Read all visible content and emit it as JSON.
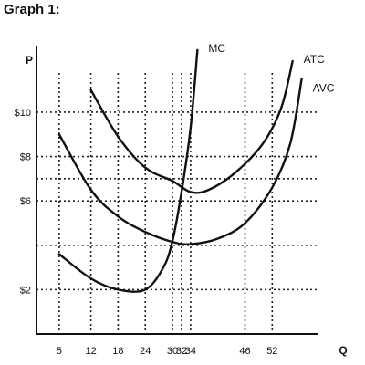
{
  "header": {
    "title": "Graph 1:"
  },
  "chart_data": {
    "type": "line",
    "ylabel": "P",
    "xlabel": "Q",
    "xlim": [
      0,
      62
    ],
    "ylim": [
      0,
      13
    ],
    "x_ticks": [
      5,
      12,
      18,
      24,
      30,
      32,
      34,
      46,
      52
    ],
    "y_ticks": [
      {
        "value": 2,
        "label": "$2"
      },
      {
        "value": 4,
        "label": ""
      },
      {
        "value": 6,
        "label": "$6"
      },
      {
        "value": 7,
        "label": ""
      },
      {
        "value": 8,
        "label": "$8"
      },
      {
        "value": 10,
        "label": "$10"
      }
    ],
    "grid": "dotted",
    "series": [
      {
        "name": "MC",
        "color": "#111111",
        "points": [
          [
            5,
            3.6
          ],
          [
            12,
            2.5
          ],
          [
            18,
            2.0
          ],
          [
            24,
            2.0
          ],
          [
            28,
            3.0
          ],
          [
            30,
            4.2
          ],
          [
            32,
            6.4
          ],
          [
            34,
            9.3
          ],
          [
            35.5,
            12.8
          ]
        ]
      },
      {
        "name": "ATC",
        "color": "#111111",
        "points": [
          [
            12,
            11.0
          ],
          [
            18,
            8.9
          ],
          [
            24,
            7.5
          ],
          [
            30,
            6.9
          ],
          [
            34,
            6.4
          ],
          [
            38,
            6.5
          ],
          [
            44,
            7.3
          ],
          [
            50,
            8.6
          ],
          [
            54,
            10.2
          ],
          [
            56.5,
            12.3
          ]
        ]
      },
      {
        "name": "AVC",
        "color": "#111111",
        "points": [
          [
            5,
            9.0
          ],
          [
            12,
            6.5
          ],
          [
            18,
            5.3
          ],
          [
            24,
            4.6
          ],
          [
            30,
            4.15
          ],
          [
            34,
            4.05
          ],
          [
            40,
            4.3
          ],
          [
            46,
            5.0
          ],
          [
            52,
            6.6
          ],
          [
            56,
            8.6
          ],
          [
            58.5,
            11.5
          ]
        ]
      }
    ]
  }
}
